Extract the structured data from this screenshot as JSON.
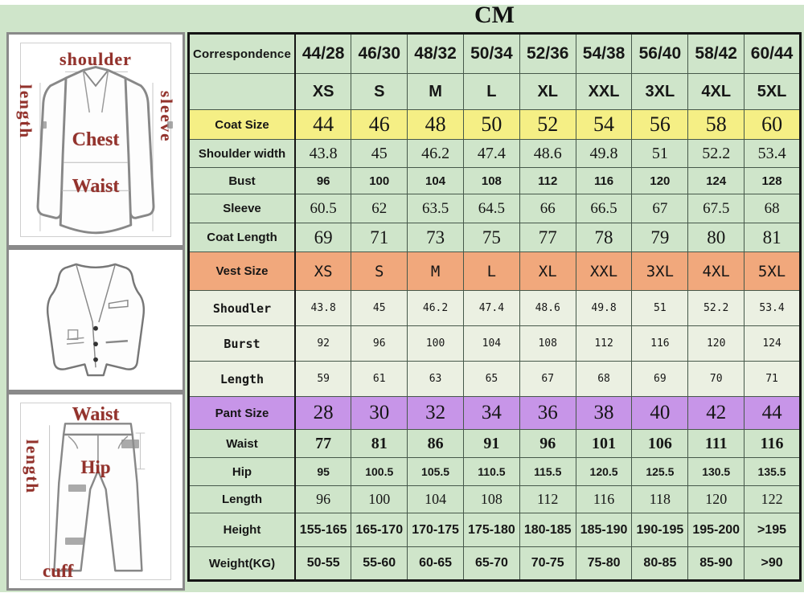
{
  "colors": {
    "page_green": "#cfe5ca",
    "coat_row_yellow": "#f5ef85",
    "vest_row_orange": "#f1a87c",
    "pant_row_purple": "#c795e8",
    "vest_data_bg": "#ebf0e2",
    "size_red": "#c8231f",
    "correspondence_purple": "#9434b4",
    "height_green": "#2d5a27",
    "diagram_label_red": "#93322c"
  },
  "diagrams": {
    "jacket": {
      "top_label": "shoulder",
      "left_label": "length",
      "right_label": "sleeve",
      "center_label": "Chest",
      "lower_label": "Waist"
    },
    "pants": {
      "top_label": "Waist",
      "left_label": "length",
      "center_label": "Hip",
      "bottom_label": "cuff"
    }
  },
  "chart_data": {
    "type": "table",
    "title": "CM",
    "corner_label": "Correspondence",
    "columns": [
      "44/28",
      "46/30",
      "48/32",
      "50/34",
      "52/36",
      "54/38",
      "56/40",
      "58/42",
      "60/44"
    ],
    "rows": [
      {
        "label": "Correspondence",
        "style": "header",
        "values": [
          "44/28",
          "46/30",
          "48/32",
          "50/34",
          "52/36",
          "54/38",
          "56/40",
          "58/42",
          "60/44"
        ]
      },
      {
        "label": "",
        "style": "sizes",
        "values": [
          "XS",
          "S",
          "M",
          "L",
          "XL",
          "XXL",
          "3XL",
          "4XL",
          "5XL"
        ]
      },
      {
        "label": "Coat Size",
        "style": "coatsize",
        "values": [
          "44",
          "46",
          "48",
          "50",
          "52",
          "54",
          "56",
          "58",
          "60"
        ]
      },
      {
        "label": "Shoulder width",
        "style": "serifmd",
        "values": [
          "43.8",
          "45",
          "46.2",
          "47.4",
          "48.6",
          "49.8",
          "51",
          "52.2",
          "53.4"
        ]
      },
      {
        "label": "Bust",
        "style": "boldsm",
        "values": [
          "96",
          "100",
          "104",
          "108",
          "112",
          "116",
          "120",
          "124",
          "128"
        ]
      },
      {
        "label": "Sleeve",
        "style": "serifmd2",
        "values": [
          "60.5",
          "62",
          "63.5",
          "64.5",
          "66",
          "66.5",
          "67",
          "67.5",
          "68"
        ]
      },
      {
        "label": "Coat Length",
        "style": "seriflg",
        "values": [
          "69",
          "71",
          "73",
          "75",
          "77",
          "78",
          "79",
          "80",
          "81"
        ]
      },
      {
        "label": "Vest Size",
        "style": "vestsize",
        "values": [
          "XS",
          "S",
          "M",
          "L",
          "XL",
          "XXL",
          "3XL",
          "4XL",
          "5XL"
        ]
      },
      {
        "label": "Shoudler",
        "style": "vest",
        "values": [
          "43.8",
          "45",
          "46.2",
          "47.4",
          "48.6",
          "49.8",
          "51",
          "52.2",
          "53.4"
        ]
      },
      {
        "label": "Burst",
        "style": "vest",
        "values": [
          "92",
          "96",
          "100",
          "104",
          "108",
          "112",
          "116",
          "120",
          "124"
        ]
      },
      {
        "label": "Length",
        "style": "vest",
        "values": [
          "59",
          "61",
          "63",
          "65",
          "67",
          "68",
          "69",
          "70",
          "71"
        ]
      },
      {
        "label": "Pant Size",
        "style": "pantsize",
        "values": [
          "28",
          "30",
          "32",
          "34",
          "36",
          "38",
          "40",
          "42",
          "44"
        ]
      },
      {
        "label": "Waist",
        "style": "serifbold",
        "values": [
          "77",
          "81",
          "86",
          "91",
          "96",
          "101",
          "106",
          "111",
          "116"
        ]
      },
      {
        "label": "Hip",
        "style": "sanssm",
        "values": [
          "95",
          "100.5",
          "105.5",
          "110.5",
          "115.5",
          "120.5",
          "125.5",
          "130.5",
          "135.5"
        ]
      },
      {
        "label": "Length",
        "style": "serifsm",
        "values": [
          "96",
          "100",
          "104",
          "108",
          "112",
          "116",
          "118",
          "120",
          "122"
        ]
      },
      {
        "label": "Height",
        "style": "height",
        "values": [
          "155-165",
          "165-170",
          "170-175",
          "175-180",
          "180-185",
          "185-190",
          "190-195",
          "195-200",
          ">195"
        ]
      },
      {
        "label": "Weight(KG)",
        "style": "height",
        "values": [
          "50-55",
          "55-60",
          "60-65",
          "65-70",
          "70-75",
          "75-80",
          "80-85",
          "85-90",
          ">90"
        ]
      }
    ]
  }
}
